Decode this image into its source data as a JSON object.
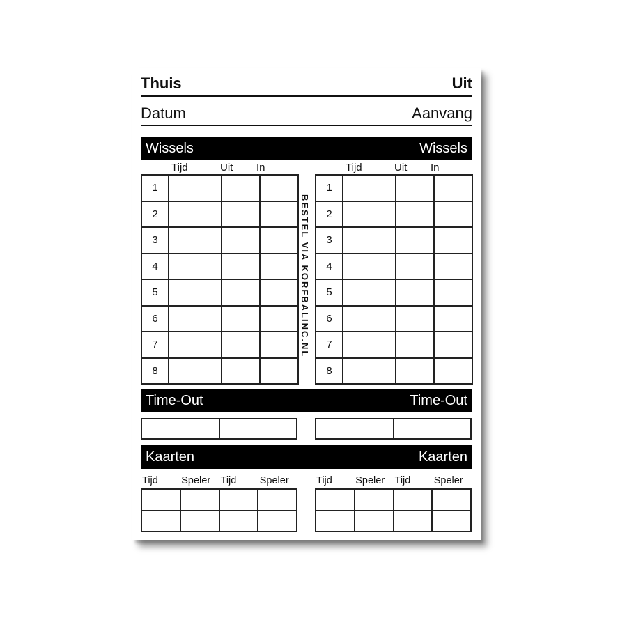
{
  "header": {
    "home": "Thuis",
    "away": "Uit"
  },
  "subheader": {
    "date": "Datum",
    "start": "Aanvang"
  },
  "watermark": "BESTEL VIA KORFBALINC.NL",
  "wissels": {
    "title_left": "Wissels",
    "title_right": "Wissels",
    "columns": [
      "Tijd",
      "Uit",
      "In"
    ],
    "rows": [
      "1",
      "2",
      "3",
      "4",
      "5",
      "6",
      "7",
      "8"
    ]
  },
  "timeout": {
    "title_left": "Time-Out",
    "title_right": "Time-Out"
  },
  "kaarten": {
    "title_left": "Kaarten",
    "title_right": "Kaarten",
    "columns": [
      "Tijd",
      "Speler",
      "Tijd",
      "Speler"
    ]
  },
  "colors": {
    "bar-bg": "#000000",
    "bar-text": "#ffffff",
    "line": "#111111",
    "grid": "#222222",
    "page-bg": "#ffffff"
  }
}
